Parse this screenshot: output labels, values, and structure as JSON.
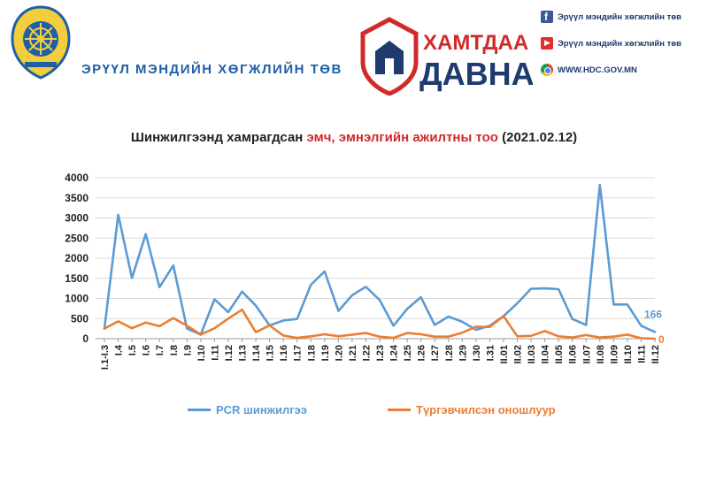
{
  "header": {
    "org_name": "ЭРҮҮЛ МЭНДИЙН ХӨГЖЛИЙН ТӨВ",
    "campaign_top": "ХАМТДАА",
    "campaign_bottom": "ДАВНА",
    "social": [
      {
        "icon": "facebook-icon",
        "text": "Эрүүл мэндийн хөгжлийн төв",
        "color": "#3b5998"
      },
      {
        "icon": "youtube-icon",
        "text": "Эрүүл мэндийн хөгжлийн төв",
        "color": "#e52d27"
      },
      {
        "icon": "chrome-icon",
        "text": "WWW.HDC.GOV.MN",
        "color": "#4285f4"
      }
    ]
  },
  "chart_title": {
    "prefix": "Шинжилгээнд хамрагдсан ",
    "highlight": "эмч, эмнэлгийн ажилтны тоо",
    "suffix": " (2021.02.12)"
  },
  "chart_data": {
    "type": "line",
    "categories": [
      "I.1-I.3",
      "I.4",
      "I.5",
      "I.6",
      "I.7",
      "I.8",
      "I.9",
      "I.10",
      "I.11",
      "I.12",
      "I.13",
      "I.14",
      "I.15",
      "I.16",
      "I.17",
      "I.18",
      "I.19",
      "I.20",
      "I.21",
      "I.22",
      "I.23",
      "I.24",
      "I.25",
      "I.26",
      "I.27",
      "I.28",
      "I.29",
      "I.30",
      "I.31",
      "II.01",
      "II.02",
      "II.03",
      "II.04",
      "II.05",
      "II.06",
      "II.07",
      "II.08",
      "II.09",
      "II.10",
      "II.11",
      "II.12"
    ],
    "ylim": [
      0,
      4000
    ],
    "yticks": [
      0,
      500,
      1000,
      1500,
      2000,
      2500,
      3000,
      3500,
      4000
    ],
    "grid": true,
    "series": [
      {
        "name": "PCR шинжилгээ",
        "color": "#5b9bd5",
        "values": [
          250,
          3080,
          1510,
          2600,
          1280,
          1820,
          250,
          100,
          980,
          660,
          1170,
          820,
          330,
          450,
          490,
          1340,
          1670,
          690,
          1080,
          1290,
          960,
          320,
          740,
          1030,
          340,
          550,
          420,
          220,
          320,
          560,
          880,
          1240,
          1250,
          1230,
          490,
          340,
          3820,
          850,
          850,
          320,
          166
        ]
      },
      {
        "name": "Түргэвчилсэн оношлуур",
        "color": "#ed7d31",
        "values": [
          250,
          430,
          260,
          400,
          310,
          510,
          320,
          100,
          260,
          500,
          720,
          160,
          330,
          80,
          20,
          60,
          110,
          60,
          100,
          140,
          50,
          20,
          140,
          110,
          50,
          50,
          150,
          300,
          290,
          560,
          60,
          70,
          190,
          60,
          30,
          90,
          30,
          50,
          100,
          10,
          0
        ]
      }
    ],
    "end_labels": [
      "166",
      "0"
    ]
  }
}
